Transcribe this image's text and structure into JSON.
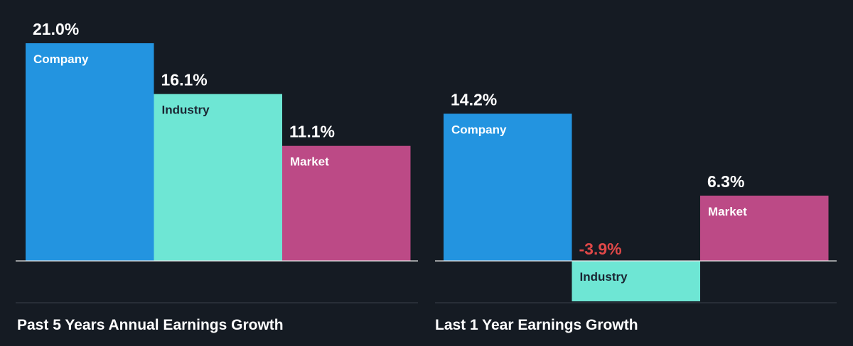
{
  "colors": {
    "background": "#151b23",
    "company": "#2394e0",
    "industry": "#6ee6d4",
    "market": "#bc4a86",
    "positive_text": "#ffffff",
    "negative_text": "#e04848",
    "label_dark": "#1b2633",
    "label_light": "#ffffff",
    "axis": "#e8e8e8",
    "divider": "#3a414b"
  },
  "chart_data": [
    {
      "type": "bar",
      "title": "Past 5 Years Annual Earnings Growth",
      "categories": [
        "Company",
        "Industry",
        "Market"
      ],
      "values": [
        21.0,
        16.1,
        11.1
      ],
      "value_labels": [
        "21.0%",
        "16.1%",
        "11.1%"
      ],
      "colors": [
        "#2394e0",
        "#6ee6d4",
        "#bc4a86"
      ],
      "ylim": [
        -7.0,
        21.0
      ],
      "grid": false,
      "legend": "none"
    },
    {
      "type": "bar",
      "title": "Last 1 Year Earnings Growth",
      "categories": [
        "Company",
        "Industry",
        "Market"
      ],
      "values": [
        14.2,
        -3.9,
        6.3
      ],
      "value_labels": [
        "14.2%",
        "-3.9%",
        "6.3%"
      ],
      "colors": [
        "#2394e0",
        "#6ee6d4",
        "#bc4a86"
      ],
      "ylim": [
        -7.0,
        21.0
      ],
      "grid": false,
      "legend": "none"
    }
  ]
}
